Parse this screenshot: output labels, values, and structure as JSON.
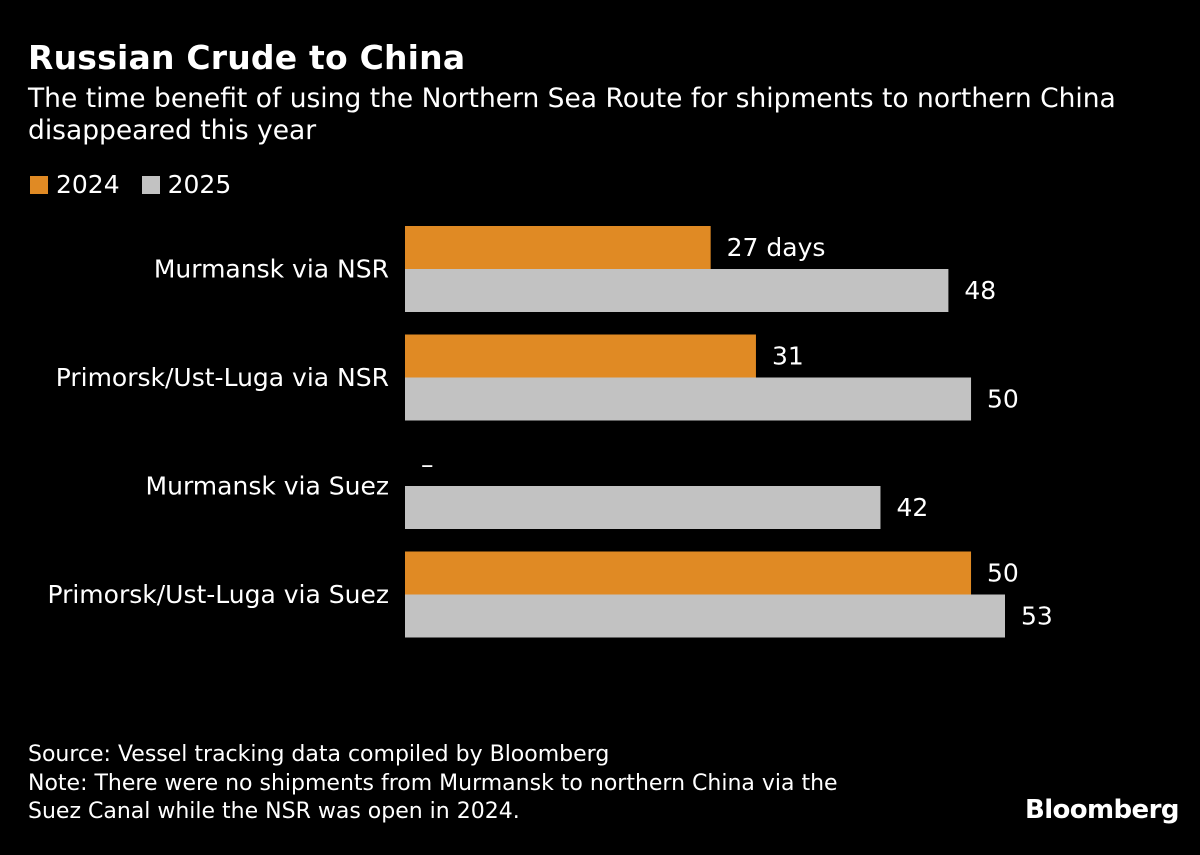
{
  "header": {
    "title": "Russian Crude to China",
    "subtitle_line1": "The time benefit of using the Northern Sea Route for shipments to northern China",
    "subtitle_line2": "disappeared this year"
  },
  "legend": [
    {
      "label": "2024",
      "color": "#e08a24"
    },
    {
      "label": "2025",
      "color": "#c2c2c2"
    }
  ],
  "chart_data": {
    "type": "bar",
    "orientation": "horizontal",
    "title": "Russian Crude to China",
    "categories": [
      "Murmansk via NSR",
      "Primorsk/Ust-Luga via NSR",
      "Murmansk via Suez",
      "Primorsk/Ust-Luga via Suez"
    ],
    "series": [
      {
        "name": "2024",
        "color": "#e08a24",
        "values": [
          27,
          31,
          null,
          50
        ],
        "labels": [
          "27 days",
          "31",
          "–",
          "50"
        ]
      },
      {
        "name": "2025",
        "color": "#c2c2c2",
        "values": [
          48,
          50,
          42,
          53
        ],
        "labels": [
          "48",
          "50",
          "42",
          "53"
        ]
      }
    ],
    "xlim": [
      0,
      53
    ],
    "unit": "days",
    "legend": "top-left",
    "grid": false
  },
  "footer": {
    "source": "Source: Vessel tracking data compiled by Bloomberg",
    "note_line1": "Note: There were no shipments from Murmansk to northern China via the",
    "note_line2": "Suez Canal while the NSR was open in 2024."
  },
  "brand": "Bloomberg"
}
